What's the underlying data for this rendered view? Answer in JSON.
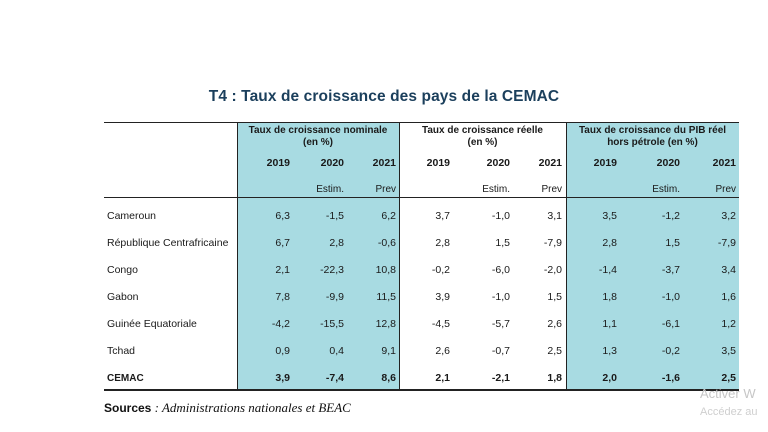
{
  "title": "T4 : Taux de croissance des pays de la CEMAC",
  "groups": [
    {
      "label": "Taux de croissance nominale\n(en %)"
    },
    {
      "label": "Taux de croissance réelle\n(en %)"
    },
    {
      "label": "Taux de croissance du PIB réel\nhors pétrole (en %)"
    }
  ],
  "years": [
    "2019",
    "2020",
    "2021"
  ],
  "subheaders": [
    "",
    "Estim.",
    "Prev"
  ],
  "rows": [
    {
      "country": "Cameroun",
      "values": [
        "6,3",
        "-1,5",
        "6,2",
        "3,7",
        "-1,0",
        "3,1",
        "3,5",
        "-1,2",
        "3,2"
      ]
    },
    {
      "country": "République Centrafricaine",
      "values": [
        "6,7",
        "2,8",
        "-0,6",
        "2,8",
        "1,5",
        "-7,9",
        "2,8",
        "1,5",
        "-7,9"
      ]
    },
    {
      "country": "Congo",
      "values": [
        "2,1",
        "-22,3",
        "10,8",
        "-0,2",
        "-6,0",
        "-2,0",
        "-1,4",
        "-3,7",
        "3,4"
      ]
    },
    {
      "country": "Gabon",
      "values": [
        "7,8",
        "-9,9",
        "11,5",
        "3,9",
        "-1,0",
        "1,5",
        "1,8",
        "-1,0",
        "1,6"
      ]
    },
    {
      "country": "Guinée Equatoriale",
      "values": [
        "-4,2",
        "-15,5",
        "12,8",
        "-4,5",
        "-5,7",
        "2,6",
        "1,1",
        "-6,1",
        "1,2"
      ]
    },
    {
      "country": "Tchad",
      "values": [
        "0,9",
        "0,4",
        "9,1",
        "2,6",
        "-0,7",
        "2,5",
        "1,3",
        "-0,2",
        "3,5"
      ]
    },
    {
      "country": "CEMAC",
      "values": [
        "3,9",
        "-7,4",
        "8,6",
        "2,1",
        "-2,1",
        "1,8",
        "2,0",
        "-1,6",
        "2,5"
      ],
      "total": true
    }
  ],
  "sources": {
    "label": "Sources",
    "text": "Administrations nationales et BEAC"
  },
  "watermark": {
    "line1": "Activer W",
    "line2": "Accédez au"
  },
  "colors": {
    "teal": "#a8dbe2",
    "title": "#1b3f5c"
  }
}
